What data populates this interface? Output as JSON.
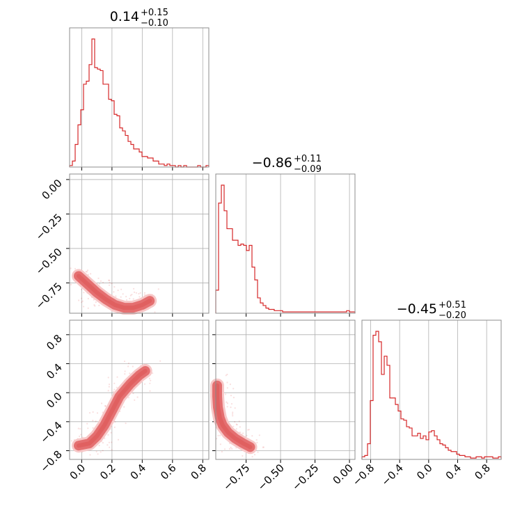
{
  "colors": {
    "accent": "#d62728",
    "grid": "#b0b0b0",
    "fill_light": "#f7c8c8",
    "fill_dark": "#e06060"
  },
  "titles": [
    {
      "value": "0.14",
      "plus": "+0.15",
      "minus": "−0.10"
    },
    {
      "value": "−0.86",
      "plus": "+0.11",
      "minus": "−0.09"
    },
    {
      "value": "−0.45",
      "plus": "+0.51",
      "minus": "−0.20"
    }
  ],
  "chart_data": {
    "type": "corner",
    "grid": true,
    "parameters": [
      {
        "name": "",
        "range": [
          -0.08,
          0.84
        ],
        "ticks": [
          0.0,
          0.2,
          0.4,
          0.6,
          0.8
        ],
        "tick_labels": [
          "0.0",
          "0.2",
          "0.4",
          "0.6",
          "0.8"
        ]
      },
      {
        "name": "",
        "range": [
          -0.97,
          0.04
        ],
        "ticks": [
          -0.75,
          -0.5,
          -0.25,
          0.0
        ],
        "tick_labels": [
          "−0.75",
          "−0.50",
          "−0.25",
          "0.00"
        ]
      },
      {
        "name": "",
        "range": [
          -0.92,
          1.0
        ],
        "ticks": [
          -0.8,
          -0.4,
          0.0,
          0.4,
          0.8
        ],
        "tick_labels": [
          "−0.8",
          "−0.4",
          "0.0",
          "0.4",
          "0.8"
        ]
      }
    ],
    "histograms": [
      {
        "param": 0,
        "bin_start": -0.08,
        "bin_width": 0.0184,
        "counts": [
          1,
          4,
          15,
          28,
          38,
          55,
          57,
          68,
          85,
          66,
          65,
          64,
          55,
          55,
          45,
          44,
          35,
          34,
          26,
          24,
          21,
          17,
          15,
          12,
          12,
          10,
          7,
          7,
          6,
          6,
          4,
          4,
          2,
          2,
          1,
          2,
          1,
          1,
          0,
          1,
          0,
          1,
          0,
          0,
          0,
          0,
          1,
          0,
          0,
          1
        ]
      },
      {
        "param": 1,
        "bin_start": -0.97,
        "bin_width": 0.0202,
        "counts": [
          18,
          86,
          100,
          80,
          66,
          66,
          57,
          57,
          53,
          54,
          53,
          49,
          53,
          36,
          26,
          12,
          8,
          6,
          4,
          3,
          3,
          2,
          2,
          2,
          1,
          1,
          1,
          1,
          1,
          1,
          1,
          1,
          1,
          1,
          1,
          1,
          1,
          1,
          1,
          1,
          1,
          1,
          1,
          1,
          1,
          1,
          1,
          2,
          1,
          1
        ]
      },
      {
        "param": 2,
        "bin_start": -0.92,
        "bin_width": 0.0384,
        "counts": [
          2,
          3,
          12,
          45,
          95,
          98,
          90,
          65,
          79,
          72,
          47,
          47,
          42,
          37,
          31,
          30,
          25,
          24,
          18,
          18,
          20,
          16,
          18,
          15,
          21,
          22,
          18,
          15,
          12,
          11,
          9,
          7,
          6,
          6,
          4,
          3,
          3,
          2,
          2,
          1,
          1,
          2,
          2,
          1,
          2,
          2,
          2,
          1,
          1,
          2
        ]
      }
    ],
    "density_ridges": [
      {
        "x_param": 0,
        "y_param": 1,
        "points": [
          [
            -0.02,
            -0.7
          ],
          [
            0.04,
            -0.76
          ],
          [
            0.1,
            -0.82
          ],
          [
            0.16,
            -0.87
          ],
          [
            0.22,
            -0.91
          ],
          [
            0.28,
            -0.93
          ],
          [
            0.34,
            -0.93
          ],
          [
            0.4,
            -0.91
          ],
          [
            0.45,
            -0.88
          ]
        ]
      },
      {
        "x_param": 0,
        "y_param": 2,
        "points": [
          [
            -0.02,
            -0.73
          ],
          [
            0.05,
            -0.7
          ],
          [
            0.1,
            -0.6
          ],
          [
            0.15,
            -0.45
          ],
          [
            0.2,
            -0.25
          ],
          [
            0.25,
            -0.05
          ],
          [
            0.32,
            0.12
          ],
          [
            0.38,
            0.24
          ],
          [
            0.42,
            0.3
          ]
        ]
      },
      {
        "x_param": 1,
        "y_param": 2,
        "points": [
          [
            -0.96,
            0.1
          ],
          [
            -0.96,
            -0.05
          ],
          [
            -0.955,
            -0.2
          ],
          [
            -0.94,
            -0.35
          ],
          [
            -0.92,
            -0.45
          ],
          [
            -0.88,
            -0.55
          ],
          [
            -0.83,
            -0.63
          ],
          [
            -0.77,
            -0.7
          ],
          [
            -0.72,
            -0.75
          ]
        ]
      }
    ]
  }
}
